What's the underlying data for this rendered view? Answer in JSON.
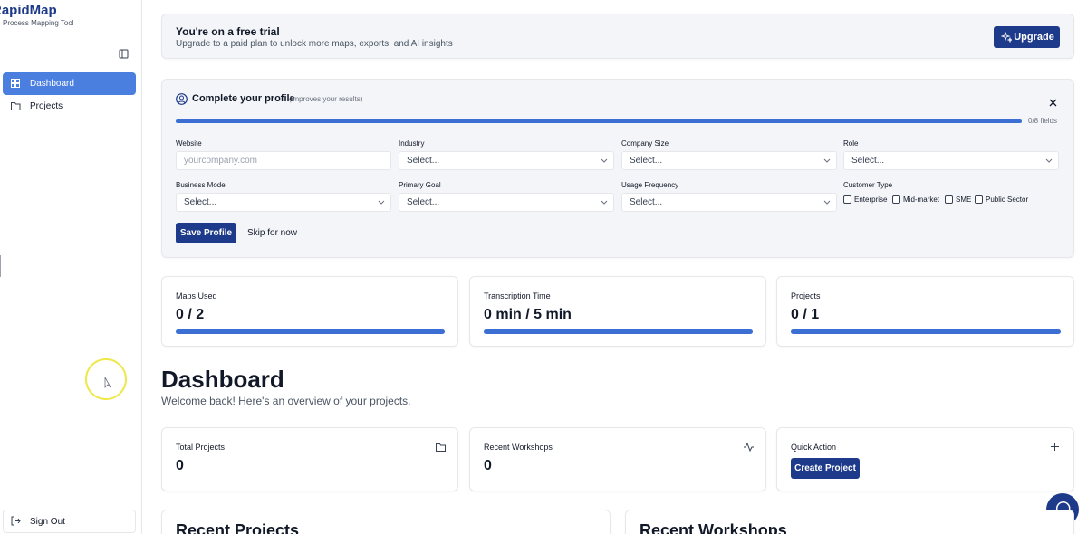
{
  "sidebar": {
    "brand": "RapidMap",
    "tagline": "Process Mapping Tool",
    "nav": [
      "Dashboard",
      "Projects"
    ],
    "sign_out": "Sign Out"
  },
  "trial_banner": {
    "title": "You're on a free trial",
    "text": "Upgrade to a paid plan to unlock more maps, exports, and AI insights",
    "button": "Upgrade"
  },
  "profile": {
    "title": "Complete your profile",
    "hint": "(improves your results)",
    "progress": "0/8 fields",
    "fields": [
      {
        "label": "Website",
        "placeholder": "yourcompany.com"
      },
      {
        "label": "Industry",
        "placeholder": "Select..."
      },
      {
        "label": "Company Size",
        "placeholder": "Select..."
      },
      {
        "label": "Role",
        "placeholder": "Select..."
      },
      {
        "label": "Business Model",
        "placeholder": "Select..."
      },
      {
        "label": "Primary Goal",
        "placeholder": "Select..."
      },
      {
        "label": "Usage Frequency",
        "placeholder": "Select..."
      }
    ],
    "customer_type": {
      "label": "Customer Type",
      "options": [
        "Enterprise",
        "Mid-market",
        "SME",
        "Public Sector"
      ]
    },
    "save": "Save Profile",
    "skip": "Skip for now"
  },
  "usage": [
    {
      "label": "Maps Used",
      "value": "0 / 2"
    },
    {
      "label": "Transcription Time",
      "value": "0 min / 5 min"
    },
    {
      "label": "Projects",
      "value": "0 / 1"
    }
  ],
  "dashboard": {
    "title": "Dashboard",
    "subtitle": "Welcome back! Here's an overview of your projects."
  },
  "stats": [
    {
      "label": "Total Projects",
      "value": 0
    },
    {
      "label": "Recent Workshops",
      "value": 0
    }
  ],
  "quick_action": {
    "label": "Quick Action",
    "button": "Create Project"
  },
  "sections": [
    "Recent Projects",
    "Recent Workshops"
  ]
}
